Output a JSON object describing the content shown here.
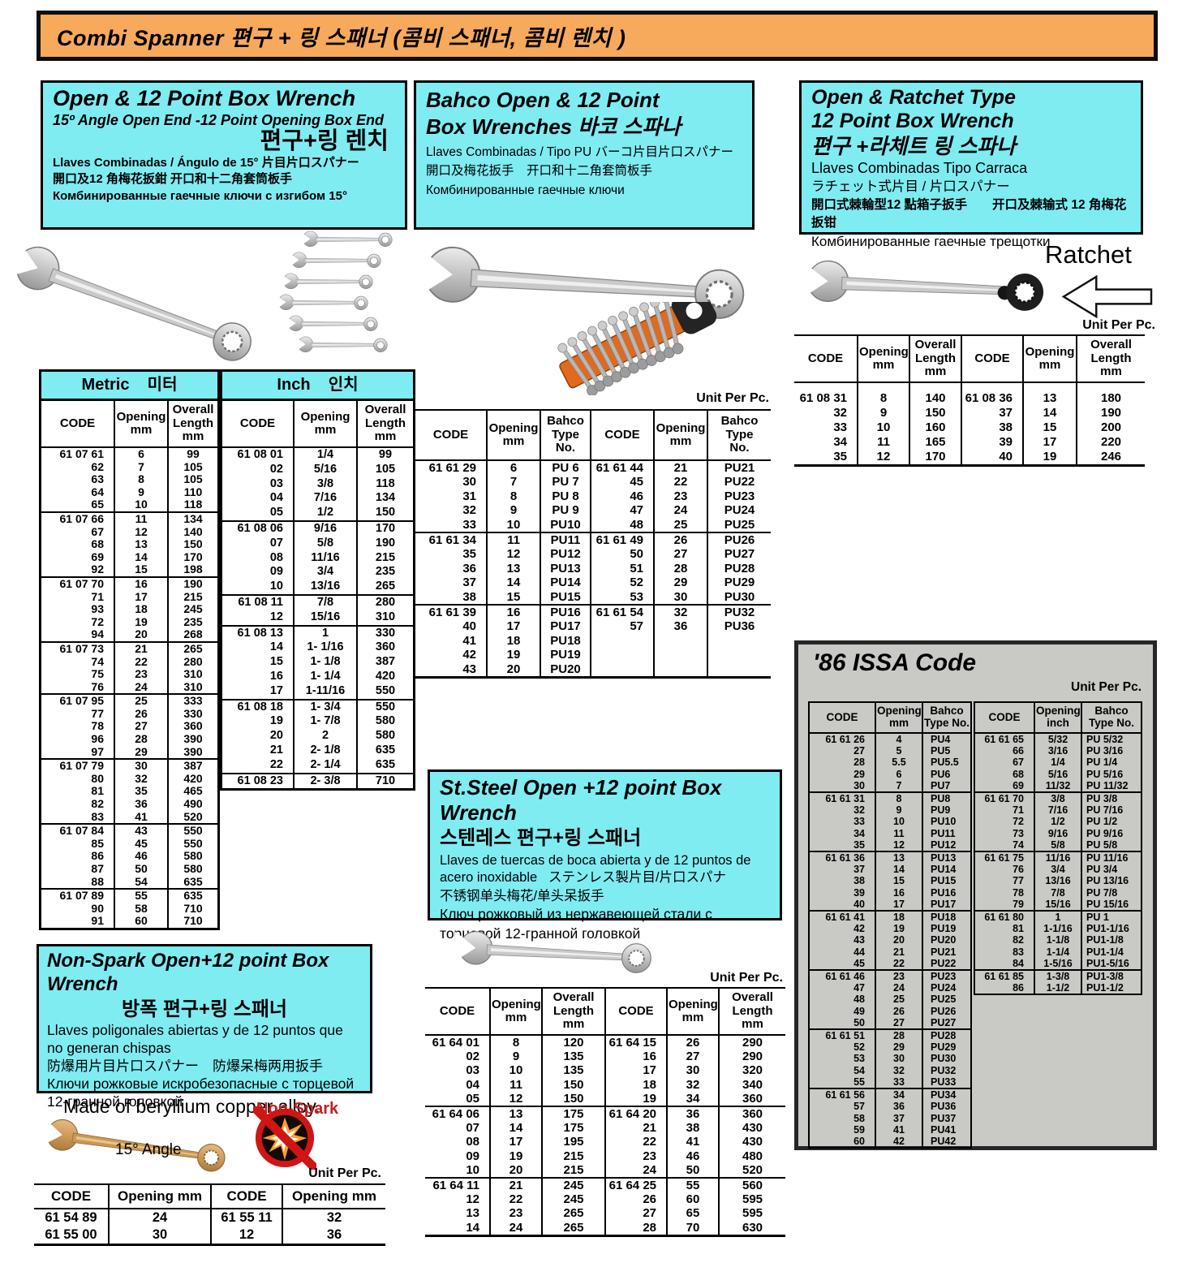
{
  "labels": {
    "unit": "Unit Per Pc."
  },
  "banner": {
    "title": "Combi Spanner  편구 + 링 스패너 (콤비 스패너, 콤비 렌치 )"
  },
  "open12": {
    "title": "Open & 12 Point Box Wrench",
    "subtitle": "15º Angle Open End -12 Point Opening Box End",
    "korean": "편구+링 렌치",
    "line_es": "Llaves Combinadas / Ángulo de  15°  片目片口スパナー",
    "line_cn": "開口及12 角梅花扳鉗 开口和十二角套筒板手",
    "line_ru": "Комбинированные гаечные  ключи с изгибом 15°",
    "metric": {
      "title": "Metric    미터",
      "columns": [
        "CODE",
        "Opening\nmm",
        "Overall\nLength\nmm"
      ],
      "groups": [
        [
          [
            "61 07 61",
            "6",
            "99"
          ],
          [
            "62",
            "7",
            "105"
          ],
          [
            "63",
            "8",
            "105"
          ],
          [
            "64",
            "9",
            "110"
          ],
          [
            "65",
            "10",
            "118"
          ]
        ],
        [
          [
            "61 07 66",
            "11",
            "134"
          ],
          [
            "67",
            "12",
            "140"
          ],
          [
            "68",
            "13",
            "150"
          ],
          [
            "69",
            "14",
            "170"
          ],
          [
            "92",
            "15",
            "198"
          ]
        ],
        [
          [
            "61 07 70",
            "16",
            "190"
          ],
          [
            "71",
            "17",
            "215"
          ],
          [
            "93",
            "18",
            "245"
          ],
          [
            "72",
            "19",
            "235"
          ],
          [
            "94",
            "20",
            "268"
          ]
        ],
        [
          [
            "61 07 73",
            "21",
            "265"
          ],
          [
            "74",
            "22",
            "280"
          ],
          [
            "75",
            "23",
            "310"
          ],
          [
            "76",
            "24",
            "310"
          ]
        ],
        [
          [
            "61 07 95",
            "25",
            "333"
          ],
          [
            "77",
            "26",
            "330"
          ],
          [
            "78",
            "27",
            "360"
          ],
          [
            "96",
            "28",
            "390"
          ],
          [
            "97",
            "29",
            "390"
          ]
        ],
        [
          [
            "61 07 79",
            "30",
            "387"
          ],
          [
            "80",
            "32",
            "420"
          ],
          [
            "81",
            "35",
            "465"
          ],
          [
            "82",
            "36",
            "490"
          ],
          [
            "83",
            "41",
            "520"
          ]
        ],
        [
          [
            "61 07 84",
            "43",
            "550"
          ],
          [
            "85",
            "45",
            "550"
          ],
          [
            "86",
            "46",
            "580"
          ],
          [
            "87",
            "50",
            "580"
          ],
          [
            "88",
            "54",
            "635"
          ]
        ],
        [
          [
            "61 07 89",
            "55",
            "635"
          ],
          [
            "90",
            "58",
            "710"
          ],
          [
            "91",
            "60",
            "710"
          ]
        ]
      ]
    },
    "inch": {
      "title": "Inch    인치",
      "columns": [
        "CODE",
        "Opening\nmm",
        "Overall\nLength\nmm"
      ],
      "groups": [
        [
          [
            "61 08 01",
            "1/4",
            "99"
          ],
          [
            "02",
            "5/16",
            "105"
          ],
          [
            "03",
            "3/8",
            "118"
          ],
          [
            "04",
            "7/16",
            "134"
          ],
          [
            "05",
            "1/2",
            "150"
          ]
        ],
        [
          [
            "61 08 06",
            "9/16",
            "170"
          ],
          [
            "07",
            "5/8",
            "190"
          ],
          [
            "08",
            "11/16",
            "215"
          ],
          [
            "09",
            "3/4",
            "235"
          ],
          [
            "10",
            "13/16",
            "265"
          ]
        ],
        [
          [
            "61 08 11",
            "7/8",
            "280"
          ],
          [
            "12",
            "15/16",
            "310"
          ]
        ],
        [
          [
            "61 08 13",
            "1",
            "330"
          ],
          [
            "14",
            "1- 1/16",
            "360"
          ],
          [
            "15",
            "1- 1/8",
            "387"
          ],
          [
            "16",
            "1- 1/4",
            "420"
          ],
          [
            "17",
            "1-11/16",
            "550"
          ]
        ],
        [
          [
            "61 08 18",
            "1- 3/4",
            "550"
          ],
          [
            "19",
            "1- 7/8",
            "580"
          ],
          [
            "20",
            "2",
            "580"
          ],
          [
            "21",
            "2- 1/8",
            "635"
          ],
          [
            "22",
            "2- 1/4",
            "635"
          ]
        ],
        [
          [
            "61 08 23",
            "2- 3/8",
            "710"
          ]
        ]
      ]
    }
  },
  "bahco": {
    "title1": "Bahco Open & 12 Point",
    "title2": "Box Wrenches    바코 스파나",
    "line_es": "Llaves Combinadas / Tipo PU   バーコ片目片口スパナー",
    "line_cn": "開口及梅花扳手　开口和十二角套筒板手",
    "line_ru": "Комбинированные гаечные ключи",
    "table": {
      "columns": [
        "CODE",
        "Opening\nmm",
        "Bahco\nType\nNo.",
        "CODE",
        "Opening\nmm",
        "Bahco\nType\nNo."
      ],
      "groups": [
        [
          [
            "61 61 29",
            "6",
            "PU 6",
            "61 61 44",
            "21",
            "PU21"
          ],
          [
            "30",
            "7",
            "PU 7",
            "45",
            "22",
            "PU22"
          ],
          [
            "31",
            "8",
            "PU 8",
            "46",
            "23",
            "PU23"
          ],
          [
            "32",
            "9",
            "PU 9",
            "47",
            "24",
            "PU24"
          ],
          [
            "33",
            "10",
            "PU10",
            "48",
            "25",
            "PU25"
          ]
        ],
        [
          [
            "61 61 34",
            "11",
            "PU11",
            "61 61 49",
            "26",
            "PU26"
          ],
          [
            "35",
            "12",
            "PU12",
            "50",
            "27",
            "PU27"
          ],
          [
            "36",
            "13",
            "PU13",
            "51",
            "28",
            "PU28"
          ],
          [
            "37",
            "14",
            "PU14",
            "52",
            "29",
            "PU29"
          ],
          [
            "38",
            "15",
            "PU15",
            "53",
            "30",
            "PU30"
          ]
        ],
        [
          [
            "61 61 39",
            "16",
            "PU16",
            "61 61 54",
            "32",
            "PU32"
          ],
          [
            "40",
            "17",
            "PU17",
            "57",
            "36",
            "PU36"
          ],
          [
            "41",
            "18",
            "PU18",
            "",
            "",
            ""
          ],
          [
            "42",
            "19",
            "PU19",
            "",
            "",
            ""
          ],
          [
            "43",
            "20",
            "PU20",
            "",
            "",
            ""
          ]
        ]
      ]
    }
  },
  "ratchet": {
    "title1": "Open & Ratchet Type",
    "title2": "12 Point Box Wrench",
    "korean": "편구 +라체트 링 스파나",
    "line_es": "Llaves Combinadas Tipo Carraca",
    "line_jp": "ラチェット式片目 / 片口スパナー",
    "line_cn": "開口式棘輪型12 點箱子扳手　　开口及棘输式 12 角梅花扳钳",
    "line_ru": "Комбинированные гаечные трещотки",
    "label": "Ratchet",
    "table": {
      "columns": [
        "CODE",
        "Opening\nmm",
        "Overall\nLength\nmm",
        "CODE",
        "Opening\nmm",
        "Overall\nLength\nmm"
      ],
      "groups": [
        [
          [
            "61 08 31",
            "8",
            "140",
            "61 08 36",
            "13",
            "180"
          ],
          [
            "32",
            "9",
            "150",
            "37",
            "14",
            "190"
          ],
          [
            "33",
            "10",
            "160",
            "38",
            "15",
            "200"
          ],
          [
            "34",
            "11",
            "165",
            "39",
            "17",
            "220"
          ],
          [
            "35",
            "12",
            "170",
            "40",
            "19",
            "246"
          ]
        ]
      ]
    }
  },
  "issa": {
    "title": "'86 ISSA Code",
    "left": {
      "columns": [
        "CODE",
        "Opening\nmm",
        "Bahco\nType No."
      ],
      "groups": [
        [
          [
            "61 61 26",
            "4",
            "PU4"
          ],
          [
            "27",
            "5",
            "PU5"
          ],
          [
            "28",
            "5.5",
            "PU5.5"
          ],
          [
            "29",
            "6",
            "PU6"
          ],
          [
            "30",
            "7",
            "PU7"
          ]
        ],
        [
          [
            "61 61 31",
            "8",
            "PU8"
          ],
          [
            "32",
            "9",
            "PU9"
          ],
          [
            "33",
            "10",
            "PU10"
          ],
          [
            "34",
            "11",
            "PU11"
          ],
          [
            "35",
            "12",
            "PU12"
          ]
        ],
        [
          [
            "61 61 36",
            "13",
            "PU13"
          ],
          [
            "37",
            "14",
            "PU14"
          ],
          [
            "38",
            "15",
            "PU15"
          ],
          [
            "39",
            "16",
            "PU16"
          ],
          [
            "40",
            "17",
            "PU17"
          ]
        ],
        [
          [
            "61 61 41",
            "18",
            "PU18"
          ],
          [
            "42",
            "19",
            "PU19"
          ],
          [
            "43",
            "20",
            "PU20"
          ],
          [
            "44",
            "21",
            "PU21"
          ],
          [
            "45",
            "22",
            "PU22"
          ]
        ],
        [
          [
            "61 61 46",
            "23",
            "PU23"
          ],
          [
            "47",
            "24",
            "PU24"
          ],
          [
            "48",
            "25",
            "PU25"
          ],
          [
            "49",
            "26",
            "PU26"
          ],
          [
            "50",
            "27",
            "PU27"
          ]
        ],
        [
          [
            "61 61 51",
            "28",
            "PU28"
          ],
          [
            "52",
            "29",
            "PU29"
          ],
          [
            "53",
            "30",
            "PU30"
          ],
          [
            "54",
            "32",
            "PU32"
          ],
          [
            "55",
            "33",
            "PU33"
          ]
        ],
        [
          [
            "61 61 56",
            "34",
            "PU34"
          ],
          [
            "57",
            "36",
            "PU36"
          ],
          [
            "58",
            "37",
            "PU37"
          ],
          [
            "59",
            "41",
            "PU41"
          ],
          [
            "60",
            "42",
            "PU42"
          ]
        ]
      ]
    },
    "right": {
      "columns": [
        "CODE",
        "Opening\ninch",
        "Bahco\nType No."
      ],
      "groups": [
        [
          [
            "61 61 65",
            "5/32",
            "PU 5/32"
          ],
          [
            "66",
            "3/16",
            "PU 3/16"
          ],
          [
            "67",
            "1/4",
            "PU 1/4"
          ],
          [
            "68",
            "5/16",
            "PU 5/16"
          ],
          [
            "69",
            "11/32",
            "PU 11/32"
          ]
        ],
        [
          [
            "61 61 70",
            "3/8",
            "PU 3/8"
          ],
          [
            "71",
            "7/16",
            "PU 7/16"
          ],
          [
            "72",
            "1/2",
            "PU 1/2"
          ],
          [
            "73",
            "9/16",
            "PU 9/16"
          ],
          [
            "74",
            "5/8",
            "PU 5/8"
          ]
        ],
        [
          [
            "61 61 75",
            "11/16",
            "PU 11/16"
          ],
          [
            "76",
            "3/4",
            "PU 3/4"
          ],
          [
            "77",
            "13/16",
            "PU 13/16"
          ],
          [
            "78",
            "7/8",
            "PU 7/8"
          ],
          [
            "79",
            "15/16",
            "PU 15/16"
          ]
        ],
        [
          [
            "61 61 80",
            "1",
            "PU 1"
          ],
          [
            "81",
            "1-1/16",
            "PU1-1/16"
          ],
          [
            "82",
            "1-1/8",
            "PU1-1/8"
          ],
          [
            "83",
            "1-1/4",
            "PU1-1/4"
          ],
          [
            "84",
            "1-5/16",
            "PU1-5/16"
          ]
        ],
        [
          [
            "61 61 85",
            "1-3/8",
            "PU1-3/8"
          ],
          [
            "86",
            "1-1/2",
            "PU1-1/2"
          ]
        ]
      ]
    }
  },
  "nonspark": {
    "title": "Non-Spark Open+12 point Box Wrench",
    "korean": "방폭  편구+링 스패너",
    "line_es": "Llaves poligonales abiertas y de 12 puntos que no generan chispas",
    "line_cn": "防爆用片目片口スパナー　防爆呆梅两用扳手",
    "line_ru": "Ключи рожковые искробезопасные с торцевой 12-гранной головкой",
    "made_of": "Made of beryllium copper alloy.",
    "nonspark_label": "Non-Spark",
    "angle_label": "15°  Angle",
    "table": {
      "columns": [
        "CODE",
        "Opening mm",
        "CODE",
        "Opening mm"
      ],
      "groups": [
        [
          [
            "61 54 89",
            "24",
            "61 55 11",
            "32"
          ],
          [
            "61 55 00",
            "30",
            "12",
            "36"
          ]
        ]
      ]
    }
  },
  "ststeel": {
    "title": "St.Steel Open +12 point Box Wrench",
    "korean": "스텐레스  편구+링 스패너",
    "line_es": "Llaves de tuercas de boca abierta y de 12 puntos de acero inoxidable",
    "line_jp": "ステンレス製片目/片口スパナ",
    "line_cn": "不锈钢单头梅花/单头呆扳手",
    "line_ru": "Ключ рожковый из нержавеющей стали с торцевой 12-гранной головкой",
    "table": {
      "columns": [
        "CODE",
        "Opening\nmm",
        "Overall\nLength\nmm",
        "CODE",
        "Opening\nmm",
        "Overall\nLength\nmm"
      ],
      "groups": [
        [
          [
            "61 64 01",
            "8",
            "120",
            "61 64 15",
            "26",
            "290"
          ],
          [
            "02",
            "9",
            "135",
            "16",
            "27",
            "290"
          ],
          [
            "03",
            "10",
            "135",
            "17",
            "30",
            "320"
          ],
          [
            "04",
            "11",
            "150",
            "18",
            "32",
            "340"
          ],
          [
            "05",
            "12",
            "150",
            "19",
            "34",
            "360"
          ]
        ],
        [
          [
            "61 64 06",
            "13",
            "175",
            "61 64 20",
            "36",
            "360"
          ],
          [
            "07",
            "14",
            "175",
            "21",
            "38",
            "430"
          ],
          [
            "08",
            "17",
            "195",
            "22",
            "41",
            "430"
          ],
          [
            "09",
            "19",
            "215",
            "23",
            "46",
            "480"
          ],
          [
            "10",
            "20",
            "215",
            "24",
            "50",
            "520"
          ]
        ],
        [
          [
            "61 64 11",
            "21",
            "245",
            "61 64 25",
            "55",
            "560"
          ],
          [
            "12",
            "22",
            "245",
            "26",
            "60",
            "595"
          ],
          [
            "13",
            "23",
            "265",
            "27",
            "65",
            "595"
          ],
          [
            "14",
            "24",
            "265",
            "28",
            "70",
            "630"
          ]
        ]
      ]
    }
  }
}
